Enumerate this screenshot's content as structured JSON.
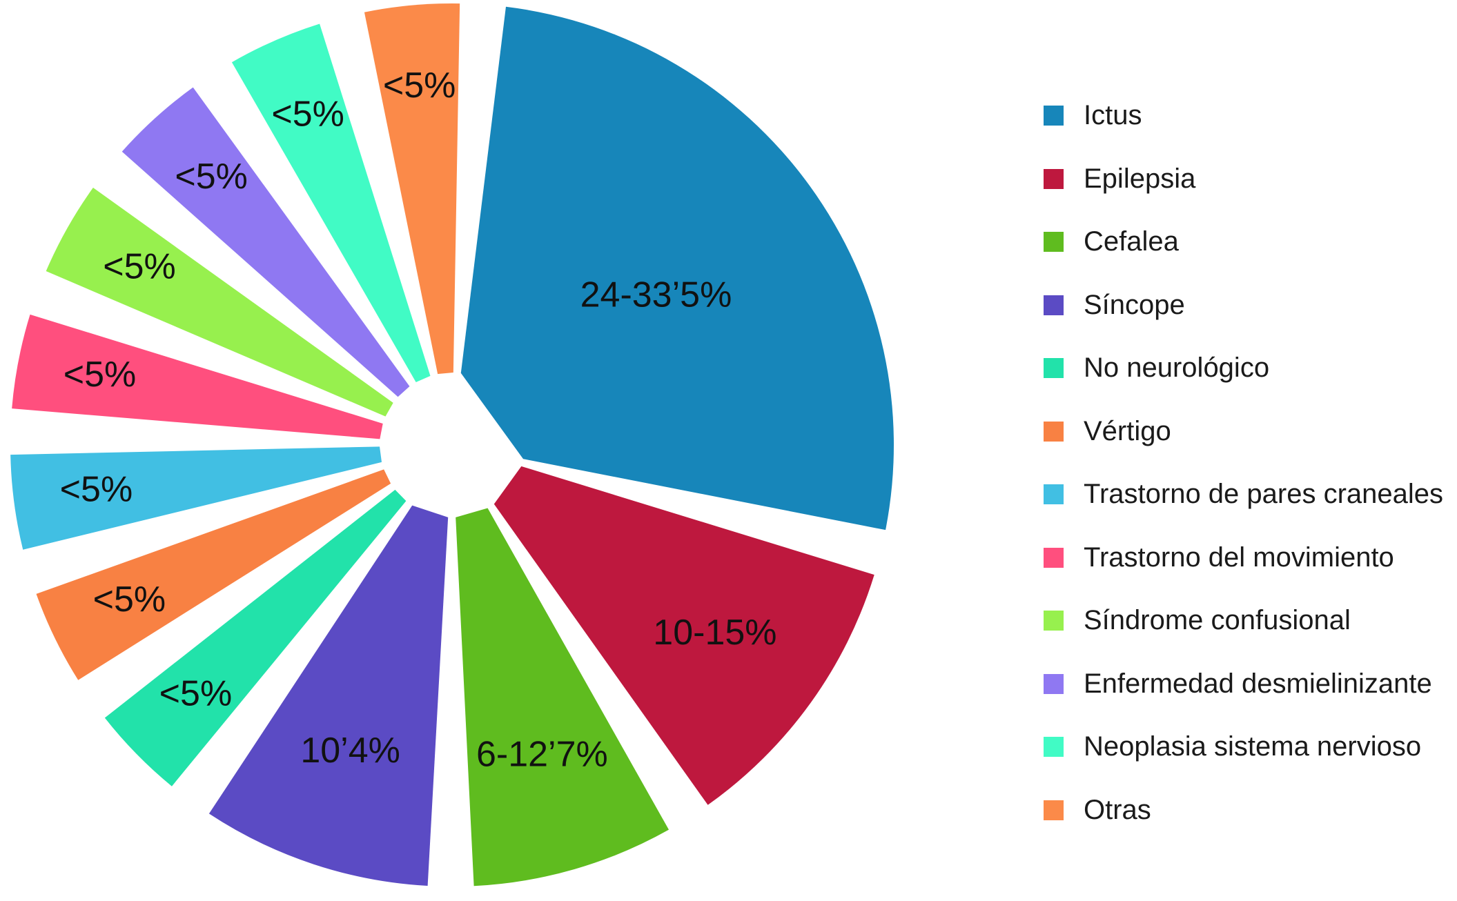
{
  "chart_data": {
    "type": "pie",
    "title": "",
    "slices": [
      {
        "name": "Ictus",
        "label": "24-33’5%",
        "value": 28.75,
        "color": "#1786BA"
      },
      {
        "name": "Epilepsia",
        "label": "10-15%",
        "value": 12.5,
        "color": "#BE183E"
      },
      {
        "name": "Cefalea",
        "label": "6-12’7%",
        "value": 9.35,
        "color": "#5FBC1F"
      },
      {
        "name": "Síncope",
        "label": "10’4%",
        "value": 10.4,
        "color": "#5B4BC4"
      },
      {
        "name": "No neurológico",
        "label": "<5%",
        "value": 5.3,
        "color": "#22E2AA"
      },
      {
        "name": "Vértigo",
        "label": "<5%",
        "value": 5.3,
        "color": "#F88143"
      },
      {
        "name": "Trastorno de pares craneales",
        "label": "<5%",
        "value": 5.3,
        "color": "#41BFE3"
      },
      {
        "name": "Trastorno del movimiento",
        "label": "<5%",
        "value": 5.3,
        "color": "#FF4F7E"
      },
      {
        "name": "Síndrome confusional",
        "label": "<5%",
        "value": 5.3,
        "color": "#97F04E"
      },
      {
        "name": "Enfermedad desmielinizante",
        "label": "<5%",
        "value": 5.3,
        "color": "#8F78F2"
      },
      {
        "name": "Neoplasia sistema nervioso",
        "label": "<5%",
        "value": 5.3,
        "color": "#41FBC5"
      },
      {
        "name": "Otras",
        "label": "<5%",
        "value": 5.3,
        "color": "#FB8A49"
      }
    ],
    "legend_position": "right"
  }
}
